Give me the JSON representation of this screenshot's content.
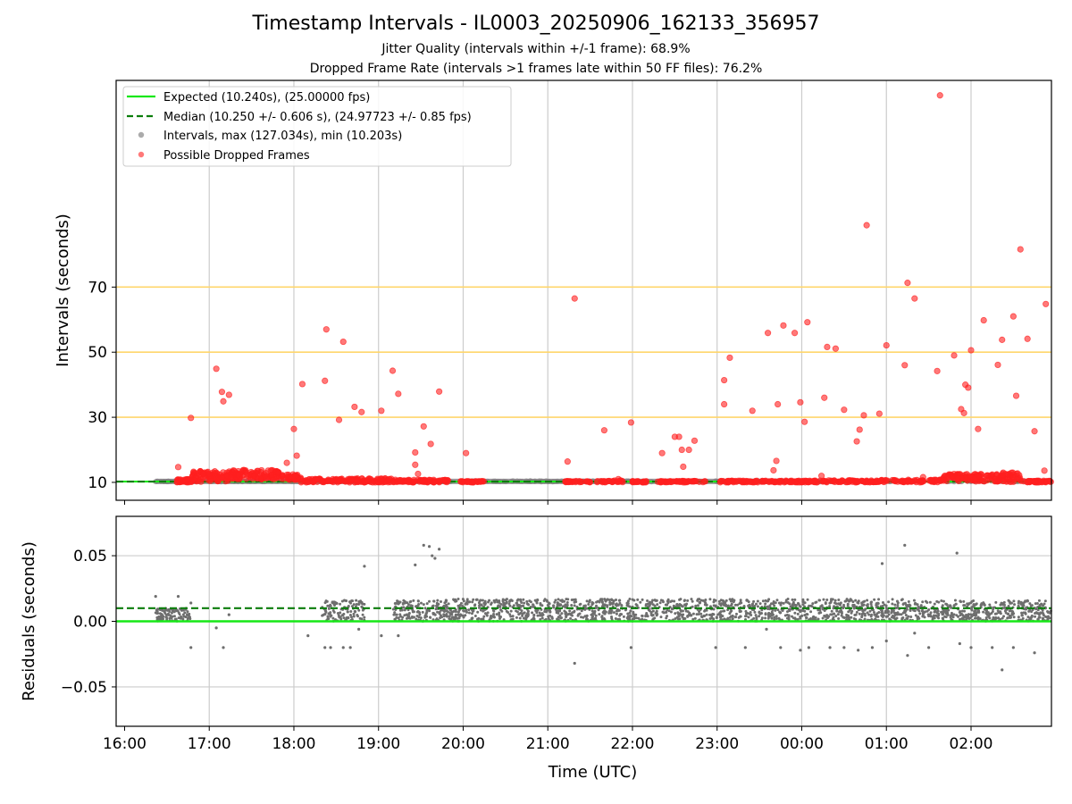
{
  "chart_data": [
    {
      "type": "scatter",
      "title": "Timestamp Intervals - IL0003_20250906_162133_356957",
      "subtitles": [
        "Jitter Quality (intervals within +/-1 frame): 68.9%",
        "Dropped Frame Rate (intervals >1 frames late within 50 FF files): 76.2%"
      ],
      "ylabel": "Intervals (seconds)",
      "xlim": [
        "15:54",
        "02:57"
      ],
      "ylim": [
        4.5,
        133.5
      ],
      "y_ticks": [
        10,
        30,
        50,
        70
      ],
      "y_tick_labels": [
        "10",
        "30",
        "50",
        "70"
      ],
      "reference_lines": [
        {
          "y": 30,
          "color": "#ffd66b"
        },
        {
          "y": 50,
          "color": "#ffd66b"
        },
        {
          "y": 70,
          "color": "#ffd66b"
        }
      ],
      "grid": "vertical",
      "legend_position": "top-left",
      "series": [
        {
          "name": "Expected (10.240s), (25.00000 fps)",
          "style": "line",
          "color": "#17e817",
          "y": 10.24
        },
        {
          "name": "Median (10.250 +/- 0.606 s), (24.97723 +/- 0.85 fps)",
          "style": "dashed-line",
          "color": "#0b7d0b",
          "y": 10.25
        },
        {
          "name": "Intervals, max (127.034s), min (10.203s)",
          "style": "points",
          "color": "#888888",
          "points": [
            [
              "16:22",
              10.24
            ],
            [
              "16:40",
              10.4
            ],
            [
              "17:10",
              11.0
            ],
            [
              "17:40",
              11.5
            ],
            [
              "18:10",
              10.3
            ],
            [
              "19:00",
              10.3
            ],
            [
              "20:00",
              10.3
            ],
            [
              "21:00",
              10.25
            ],
            [
              "22:00",
              10.25
            ],
            [
              "23:00",
              10.3
            ],
            [
              "00:00",
              10.25
            ],
            [
              "01:00",
              10.3
            ],
            [
              "02:00",
              10.4
            ],
            [
              "02:50",
              10.3
            ]
          ]
        },
        {
          "name": "Possible Dropped Frames",
          "style": "points",
          "color": "#ff2020",
          "points": [
            [
              "16:38",
              14.7
            ],
            [
              "16:47",
              29.8
            ],
            [
              "17:05",
              44.9
            ],
            [
              "17:09",
              37.8
            ],
            [
              "17:10",
              34.9
            ],
            [
              "17:14",
              36.9
            ],
            [
              "17:55",
              16.0
            ],
            [
              "18:00",
              26.4
            ],
            [
              "18:02",
              18.2
            ],
            [
              "18:06",
              40.2
            ],
            [
              "18:22",
              41.2
            ],
            [
              "18:23",
              57.0
            ],
            [
              "18:32",
              29.2
            ],
            [
              "18:35",
              53.2
            ],
            [
              "18:43",
              33.2
            ],
            [
              "18:48",
              31.6
            ],
            [
              "19:02",
              32.0
            ],
            [
              "19:10",
              44.3
            ],
            [
              "19:14",
              37.2
            ],
            [
              "19:26",
              19.2
            ],
            [
              "19:26",
              15.4
            ],
            [
              "19:28",
              12.6
            ],
            [
              "19:32",
              27.2
            ],
            [
              "19:37",
              21.8
            ],
            [
              "19:43",
              37.9
            ],
            [
              "20:02",
              19.0
            ],
            [
              "21:14",
              16.4
            ],
            [
              "21:19",
              66.5
            ],
            [
              "21:40",
              26.0
            ],
            [
              "21:50",
              11.0
            ],
            [
              "21:59",
              28.4
            ],
            [
              "22:21",
              19.0
            ],
            [
              "22:30",
              24.0
            ],
            [
              "22:33",
              24.0
            ],
            [
              "22:35",
              20.0
            ],
            [
              "22:36",
              14.8
            ],
            [
              "22:40",
              20.0
            ],
            [
              "22:44",
              22.8
            ],
            [
              "23:05",
              41.4
            ],
            [
              "23:05",
              34.0
            ],
            [
              "23:09",
              48.3
            ],
            [
              "23:25",
              32.0
            ],
            [
              "23:36",
              55.9
            ],
            [
              "23:40",
              13.7
            ],
            [
              "23:42",
              16.6
            ],
            [
              "23:43",
              34.0
            ],
            [
              "23:47",
              58.2
            ],
            [
              "23:55",
              55.9
            ],
            [
              "23:59",
              34.6
            ],
            [
              "00:02",
              28.6
            ],
            [
              "00:04",
              59.2
            ],
            [
              "00:14",
              12.0
            ],
            [
              "00:16",
              36.0
            ],
            [
              "00:18",
              51.6
            ],
            [
              "00:24",
              51.1
            ],
            [
              "00:30",
              32.3
            ],
            [
              "00:39",
              22.6
            ],
            [
              "00:41",
              26.2
            ],
            [
              "00:44",
              30.6
            ],
            [
              "00:46",
              89.0
            ],
            [
              "00:55",
              31.1
            ],
            [
              "01:00",
              52.1
            ],
            [
              "01:13",
              46.0
            ],
            [
              "01:15",
              71.3
            ],
            [
              "01:20",
              66.5
            ],
            [
              "01:26",
              11.6
            ],
            [
              "01:36",
              44.2
            ],
            [
              "01:48",
              49.0
            ],
            [
              "01:53",
              32.5
            ],
            [
              "01:55",
              31.3
            ],
            [
              "01:56",
              40.0
            ],
            [
              "01:58",
              39.1
            ],
            [
              "02:00",
              50.6
            ],
            [
              "02:03",
              11.0
            ],
            [
              "02:05",
              26.4
            ],
            [
              "02:09",
              59.8
            ],
            [
              "02:19",
              46.1
            ],
            [
              "02:22",
              53.8
            ],
            [
              "02:30",
              61.0
            ],
            [
              "02:32",
              36.6
            ],
            [
              "02:35",
              81.6
            ],
            [
              "02:40",
              54.1
            ],
            [
              "02:45",
              25.7
            ],
            [
              "02:52",
              13.6
            ],
            [
              "02:53",
              64.8
            ],
            [
              "01:38",
              128.9
            ]
          ]
        }
      ]
    },
    {
      "type": "scatter",
      "xlabel": "Time (UTC)",
      "ylabel": "Residuals (seconds)",
      "xlim": [
        "15:54",
        "02:57"
      ],
      "ylim": [
        -0.08,
        0.08
      ],
      "y_ticks": [
        -0.05,
        0.0,
        0.05
      ],
      "y_tick_labels": [
        "−0.05",
        "0.00",
        "0.05"
      ],
      "x_tick_labels": [
        "16:00",
        "17:00",
        "18:00",
        "19:00",
        "20:00",
        "21:00",
        "22:00",
        "23:00",
        "00:00",
        "01:00",
        "02:00"
      ],
      "grid": "both",
      "series": [
        {
          "style": "line",
          "color": "#17e817",
          "y": 0.0
        },
        {
          "style": "dashed-line",
          "color": "#0b7d0b",
          "y": 0.01
        },
        {
          "style": "points",
          "color": "#6e6e6e",
          "bands": [
            {
              "start": "16:22",
              "end": "16:47",
              "low": 0.0,
              "high": 0.01
            },
            {
              "start": "18:20",
              "end": "18:50",
              "low": 0.0,
              "high": 0.016
            },
            {
              "start": "19:10",
              "end": "19:45",
              "low": 0.0,
              "high": 0.016
            },
            {
              "start": "19:45",
              "end": "01:20",
              "low": 0.0,
              "high": 0.017
            },
            {
              "start": "01:20",
              "end": "02:57",
              "low": 0.0,
              "high": 0.016
            }
          ],
          "points": [
            [
              "16:22",
              0.019
            ],
            [
              "16:38",
              0.019
            ],
            [
              "16:47",
              -0.02
            ],
            [
              "16:47",
              0.014
            ],
            [
              "17:05",
              -0.005
            ],
            [
              "17:10",
              -0.02
            ],
            [
              "17:14",
              0.005
            ],
            [
              "18:10",
              -0.011
            ],
            [
              "18:22",
              -0.02
            ],
            [
              "18:26",
              -0.02
            ],
            [
              "18:35",
              -0.02
            ],
            [
              "18:40",
              -0.02
            ],
            [
              "18:46",
              -0.006
            ],
            [
              "18:50",
              0.042
            ],
            [
              "19:02",
              -0.011
            ],
            [
              "19:14",
              -0.011
            ],
            [
              "19:26",
              0.043
            ],
            [
              "19:32",
              0.058
            ],
            [
              "19:36",
              0.057
            ],
            [
              "19:38",
              0.05
            ],
            [
              "19:40",
              0.048
            ],
            [
              "19:43",
              0.055
            ],
            [
              "21:19",
              -0.032
            ],
            [
              "21:59",
              -0.02
            ],
            [
              "22:59",
              -0.02
            ],
            [
              "23:20",
              -0.02
            ],
            [
              "23:35",
              -0.006
            ],
            [
              "23:45",
              -0.02
            ],
            [
              "23:59",
              -0.022
            ],
            [
              "00:05",
              -0.02
            ],
            [
              "00:20",
              -0.02
            ],
            [
              "00:30",
              -0.02
            ],
            [
              "00:40",
              -0.022
            ],
            [
              "00:50",
              -0.02
            ],
            [
              "00:57",
              0.044
            ],
            [
              "01:00",
              -0.015
            ],
            [
              "01:13",
              0.058
            ],
            [
              "01:15",
              -0.026
            ],
            [
              "01:20",
              -0.009
            ],
            [
              "01:30",
              -0.02
            ],
            [
              "01:50",
              0.052
            ],
            [
              "01:52",
              -0.017
            ],
            [
              "02:00",
              -0.02
            ],
            [
              "02:15",
              -0.02
            ],
            [
              "02:22",
              -0.037
            ],
            [
              "02:30",
              -0.02
            ],
            [
              "02:45",
              -0.024
            ]
          ]
        }
      ]
    }
  ]
}
